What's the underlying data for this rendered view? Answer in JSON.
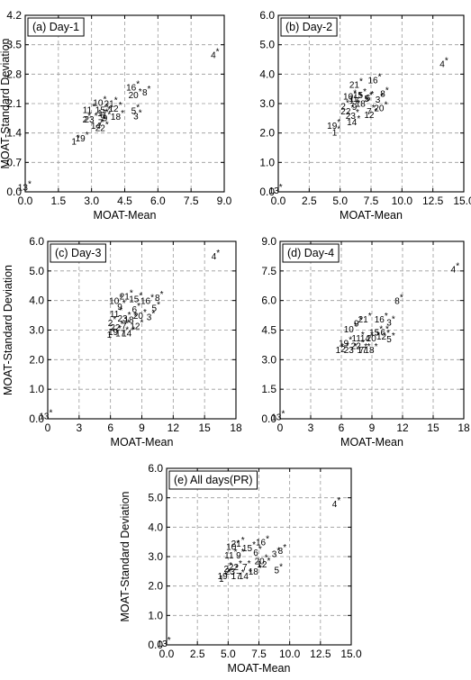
{
  "chart_data": [
    {
      "type": "scatter",
      "title": "(a) Day-1",
      "xlabel": "MOAT-Mean",
      "ylabel": "MOAT-Standard Deviation",
      "xlim": [
        0,
        9
      ],
      "ylim": [
        0,
        4.2
      ],
      "xticks": [
        "0.0",
        "1.5",
        "3.0",
        "4.5",
        "6.0",
        "7.5",
        "9.0"
      ],
      "yticks": [
        "0.0",
        "0.7",
        "1.4",
        "2.1",
        "2.8",
        "3.5",
        "4.2"
      ],
      "grid": true,
      "points": [
        {
          "label": "1",
          "x": 2.4,
          "y": 1.28
        },
        {
          "label": "2",
          "x": 2.9,
          "y": 1.8
        },
        {
          "label": "3",
          "x": 5.2,
          "y": 1.88
        },
        {
          "label": "4",
          "x": 8.7,
          "y": 3.33
        },
        {
          "label": "5",
          "x": 5.1,
          "y": 2.0
        },
        {
          "label": "6",
          "x": 3.7,
          "y": 1.9
        },
        {
          "label": "7",
          "x": 3.6,
          "y": 1.72
        },
        {
          "label": "8",
          "x": 5.6,
          "y": 2.44
        },
        {
          "label": "9",
          "x": 3.8,
          "y": 1.83
        },
        {
          "label": "10",
          "x": 3.6,
          "y": 2.2
        },
        {
          "label": "11",
          "x": 3.1,
          "y": 2.02
        },
        {
          "label": "12",
          "x": 4.3,
          "y": 2.06
        },
        {
          "label": "13",
          "x": 0.2,
          "y": 0.18
        },
        {
          "label": "14",
          "x": 3.5,
          "y": 1.65
        },
        {
          "label": "15",
          "x": 3.7,
          "y": 2.02
        },
        {
          "label": "16",
          "x": 5.1,
          "y": 2.56
        },
        {
          "label": "17",
          "x": 3.8,
          "y": 1.95
        },
        {
          "label": "18",
          "x": 4.4,
          "y": 1.86
        },
        {
          "label": "19",
          "x": 2.8,
          "y": 1.35
        },
        {
          "label": "20",
          "x": 5.2,
          "y": 2.38
        },
        {
          "label": "21",
          "x": 4.1,
          "y": 2.18
        },
        {
          "label": "22",
          "x": 3.7,
          "y": 1.6
        },
        {
          "label": "23",
          "x": 3.2,
          "y": 1.8
        }
      ]
    },
    {
      "type": "scatter",
      "title": "(b) Day-2",
      "xlabel": "MOAT-Mean",
      "ylabel": "",
      "xlim": [
        0,
        15
      ],
      "ylim": [
        0,
        6
      ],
      "xticks": [
        "0.0",
        "2.5",
        "5.0",
        "7.5",
        "10.0",
        "12.5",
        "15.0"
      ],
      "yticks": [
        "0.0",
        "1.0",
        "2.0",
        "3.0",
        "4.0",
        "5.0",
        "6.0"
      ],
      "grid": true,
      "points": [
        {
          "label": "1",
          "x": 4.9,
          "y": 2.12
        },
        {
          "label": "2",
          "x": 5.6,
          "y": 3.02
        },
        {
          "label": "3",
          "x": 8.4,
          "y": 3.25
        },
        {
          "label": "4",
          "x": 13.6,
          "y": 4.45
        },
        {
          "label": "5",
          "x": 7.5,
          "y": 3.28
        },
        {
          "label": "6",
          "x": 7.6,
          "y": 3.3
        },
        {
          "label": "7",
          "x": 7.7,
          "y": 2.85
        },
        {
          "label": "8",
          "x": 8.8,
          "y": 3.45
        },
        {
          "label": "9",
          "x": 6.5,
          "y": 3.0
        },
        {
          "label": "10",
          "x": 6.2,
          "y": 3.35
        },
        {
          "label": "11",
          "x": 6.6,
          "y": 3.28
        },
        {
          "label": "12",
          "x": 7.9,
          "y": 2.72
        },
        {
          "label": "13",
          "x": 0.2,
          "y": 0.16
        },
        {
          "label": "14",
          "x": 6.5,
          "y": 2.48
        },
        {
          "label": "15",
          "x": 7.0,
          "y": 3.4
        },
        {
          "label": "16",
          "x": 8.2,
          "y": 3.9
        },
        {
          "label": "17",
          "x": 6.7,
          "y": 3.22
        },
        {
          "label": "18",
          "x": 7.2,
          "y": 3.1
        },
        {
          "label": "19",
          "x": 4.9,
          "y": 2.35
        },
        {
          "label": "20",
          "x": 8.7,
          "y": 2.95
        },
        {
          "label": "21",
          "x": 6.7,
          "y": 3.75
        },
        {
          "label": "22",
          "x": 6.0,
          "y": 2.85
        },
        {
          "label": "23",
          "x": 6.4,
          "y": 2.7
        }
      ]
    },
    {
      "type": "scatter",
      "title": "(c) Day-3",
      "xlabel": "MOAT-Mean",
      "ylabel": "MOAT-Standard Deviation",
      "xlim": [
        0,
        18
      ],
      "ylim": [
        0,
        6
      ],
      "xticks": [
        "0",
        "3",
        "6",
        "9",
        "12",
        "15",
        "18"
      ],
      "yticks": [
        "0.0",
        "1.0",
        "2.0",
        "3.0",
        "4.0",
        "5.0",
        "6.0"
      ],
      "grid": true,
      "points": [
        {
          "label": "1",
          "x": 6.3,
          "y": 2.95
        },
        {
          "label": "2",
          "x": 6.4,
          "y": 3.35
        },
        {
          "label": "3",
          "x": 10.1,
          "y": 3.55
        },
        {
          "label": "4",
          "x": 16.3,
          "y": 5.6
        },
        {
          "label": "5",
          "x": 10.6,
          "y": 3.85
        },
        {
          "label": "6",
          "x": 8.7,
          "y": 3.8
        },
        {
          "label": "7",
          "x": 7.7,
          "y": 3.25
        },
        {
          "label": "8",
          "x": 10.9,
          "y": 4.2
        },
        {
          "label": "9",
          "x": 7.3,
          "y": 3.9
        },
        {
          "label": "10",
          "x": 7.0,
          "y": 4.1
        },
        {
          "label": "11",
          "x": 7.0,
          "y": 3.65
        },
        {
          "label": "12",
          "x": 9.0,
          "y": 3.25
        },
        {
          "label": "13",
          "x": 0.3,
          "y": 0.2
        },
        {
          "label": "14",
          "x": 8.2,
          "y": 3.0
        },
        {
          "label": "15",
          "x": 8.9,
          "y": 4.15
        },
        {
          "label": "16",
          "x": 10.0,
          "y": 4.1
        },
        {
          "label": "17",
          "x": 7.6,
          "y": 3.0
        },
        {
          "label": "18",
          "x": 8.4,
          "y": 3.45
        },
        {
          "label": "19",
          "x": 6.9,
          "y": 3.05
        },
        {
          "label": "20",
          "x": 9.3,
          "y": 3.6
        },
        {
          "label": "21",
          "x": 8.0,
          "y": 4.25
        },
        {
          "label": "22",
          "x": 7.1,
          "y": 3.2
        },
        {
          "label": "23",
          "x": 7.8,
          "y": 3.5
        }
      ]
    },
    {
      "type": "scatter",
      "title": "(d) Day-4",
      "xlabel": "MOAT-Mean",
      "ylabel": "",
      "xlim": [
        0,
        18
      ],
      "ylim": [
        0,
        9
      ],
      "xticks": [
        "0",
        "3",
        "6",
        "9",
        "12",
        "15",
        "18"
      ],
      "yticks": [
        "0.0",
        "1.5",
        "3.0",
        "4.5",
        "6.0",
        "7.5",
        "9.0"
      ],
      "grid": true,
      "points": [
        {
          "label": "1",
          "x": 6.1,
          "y": 3.65
        },
        {
          "label": "2",
          "x": 6.6,
          "y": 3.7
        },
        {
          "label": "3",
          "x": 11.1,
          "y": 5.05
        },
        {
          "label": "4",
          "x": 17.4,
          "y": 7.75
        },
        {
          "label": "5",
          "x": 11.1,
          "y": 4.2
        },
        {
          "label": "6",
          "x": 10.5,
          "y": 4.55
        },
        {
          "label": "7",
          "x": 8.4,
          "y": 3.65
        },
        {
          "label": "8",
          "x": 11.9,
          "y": 6.15
        },
        {
          "label": "9",
          "x": 7.9,
          "y": 5.0
        },
        {
          "label": "10",
          "x": 7.4,
          "y": 4.7
        },
        {
          "label": "11",
          "x": 8.1,
          "y": 4.25
        },
        {
          "label": "12",
          "x": 10.6,
          "y": 4.35
        },
        {
          "label": "13",
          "x": 0.3,
          "y": 0.25
        },
        {
          "label": "14",
          "x": 9.0,
          "y": 4.25
        },
        {
          "label": "15",
          "x": 9.9,
          "y": 4.55
        },
        {
          "label": "16",
          "x": 10.4,
          "y": 5.2
        },
        {
          "label": "17",
          "x": 8.7,
          "y": 3.65
        },
        {
          "label": "18",
          "x": 9.4,
          "y": 3.65
        },
        {
          "label": "19",
          "x": 6.9,
          "y": 4.0
        },
        {
          "label": "20",
          "x": 9.6,
          "y": 4.25
        },
        {
          "label": "21",
          "x": 8.8,
          "y": 5.2
        },
        {
          "label": "22",
          "x": 8.1,
          "y": 3.85
        },
        {
          "label": "23",
          "x": 7.4,
          "y": 3.65
        }
      ]
    },
    {
      "type": "scatter",
      "title": "(e) All days(PR)",
      "xlabel": "MOAT-Mean",
      "ylabel": "MOAT-Standard Deviation",
      "xlim": [
        0,
        15
      ],
      "ylim": [
        0,
        6
      ],
      "xticks": [
        "0.0",
        "2.5",
        "5.0",
        "7.5",
        "10.0",
        "12.5",
        "15.0"
      ],
      "yticks": [
        "0.0",
        "1.0",
        "2.0",
        "3.0",
        "4.0",
        "5.0",
        "6.0"
      ],
      "grid": true,
      "points": [
        {
          "label": "1",
          "x": 4.8,
          "y": 2.35
        },
        {
          "label": "2",
          "x": 5.2,
          "y": 2.7
        },
        {
          "label": "3",
          "x": 9.1,
          "y": 3.2
        },
        {
          "label": "4",
          "x": 14.0,
          "y": 4.9
        },
        {
          "label": "5",
          "x": 9.3,
          "y": 2.65
        },
        {
          "label": "6",
          "x": 7.6,
          "y": 3.25
        },
        {
          "label": "7",
          "x": 6.7,
          "y": 2.75
        },
        {
          "label": "8",
          "x": 9.6,
          "y": 3.3
        },
        {
          "label": "9",
          "x": 6.2,
          "y": 3.15
        },
        {
          "label": "10",
          "x": 5.8,
          "y": 3.45
        },
        {
          "label": "11",
          "x": 5.6,
          "y": 3.15
        },
        {
          "label": "12",
          "x": 8.3,
          "y": 2.85
        },
        {
          "label": "13",
          "x": 0.2,
          "y": 0.16
        },
        {
          "label": "14",
          "x": 6.8,
          "y": 2.45
        },
        {
          "label": "15",
          "x": 7.1,
          "y": 3.4
        },
        {
          "label": "16",
          "x": 8.2,
          "y": 3.6
        },
        {
          "label": "17",
          "x": 6.2,
          "y": 2.45
        },
        {
          "label": "18",
          "x": 7.6,
          "y": 2.6
        },
        {
          "label": "19",
          "x": 5.1,
          "y": 2.45
        },
        {
          "label": "20",
          "x": 8.1,
          "y": 2.95
        },
        {
          "label": "21",
          "x": 6.2,
          "y": 3.55
        },
        {
          "label": "22",
          "x": 6.0,
          "y": 2.75
        },
        {
          "label": "23",
          "x": 5.7,
          "y": 2.6
        }
      ]
    }
  ]
}
